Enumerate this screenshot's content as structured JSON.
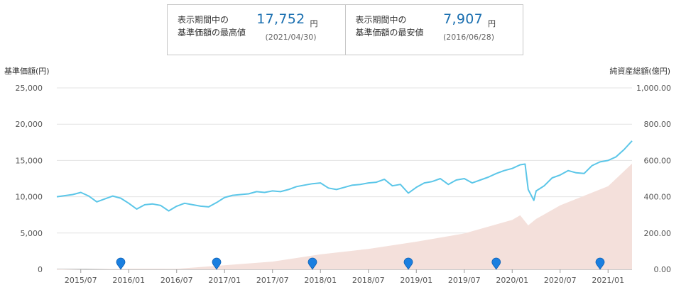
{
  "summary": {
    "high": {
      "label": "表示期間中の\n基準価額の最高値",
      "value": "17,752",
      "unit": "円",
      "date": "(2021/04/30)"
    },
    "low": {
      "label": "表示期間中の\n基準価額の最安値",
      "value": "7,907",
      "unit": "円",
      "date": "(2016/06/28)"
    }
  },
  "chart_data": {
    "type": "line",
    "left_axis_label": "基準価額(円)",
    "right_axis_label": "純資産総額(億円)",
    "y_left": {
      "min": 0,
      "max": 25000,
      "ticks": [
        "0",
        "5,000",
        "10,000",
        "15,000",
        "20,000",
        "25,000"
      ]
    },
    "y_right": {
      "min": 0,
      "max": 1000,
      "ticks": [
        "0.00",
        "200.00",
        "400.00",
        "600.00",
        "800.00",
        "1,000.00"
      ]
    },
    "x_range": [
      "2015-04",
      "2021-04"
    ],
    "x_ticks": [
      "2015/07",
      "2016/01",
      "2016/07",
      "2017/01",
      "2017/07",
      "2018/01",
      "2018/07",
      "2019/01",
      "2019/07",
      "2020/01",
      "2020/07",
      "2021/01"
    ],
    "grid": true,
    "series": [
      {
        "kind": "line",
        "axis": "left",
        "color": "#5bc6e8",
        "points": [
          [
            "2015-04",
            10000
          ],
          [
            "2015-06",
            10300
          ],
          [
            "2015-07",
            10600
          ],
          [
            "2015-08",
            10100
          ],
          [
            "2015-09",
            9300
          ],
          [
            "2015-10",
            9700
          ],
          [
            "2015-11",
            10100
          ],
          [
            "2015-12",
            9800
          ],
          [
            "2016-01",
            9100
          ],
          [
            "2016-02",
            8300
          ],
          [
            "2016-03",
            8900
          ],
          [
            "2016-04",
            9000
          ],
          [
            "2016-05",
            8800
          ],
          [
            "2016-06",
            8050
          ],
          [
            "2016-07",
            8700
          ],
          [
            "2016-08",
            9100
          ],
          [
            "2016-09",
            8900
          ],
          [
            "2016-10",
            8700
          ],
          [
            "2016-11",
            8600
          ],
          [
            "2016-12",
            9200
          ],
          [
            "2017-01",
            9900
          ],
          [
            "2017-02",
            10200
          ],
          [
            "2017-03",
            10300
          ],
          [
            "2017-04",
            10400
          ],
          [
            "2017-05",
            10700
          ],
          [
            "2017-06",
            10600
          ],
          [
            "2017-07",
            10800
          ],
          [
            "2017-08",
            10700
          ],
          [
            "2017-09",
            11000
          ],
          [
            "2017-10",
            11400
          ],
          [
            "2017-11",
            11600
          ],
          [
            "2017-12",
            11800
          ],
          [
            "2018-01",
            11900
          ],
          [
            "2018-02",
            11200
          ],
          [
            "2018-03",
            11000
          ],
          [
            "2018-04",
            11300
          ],
          [
            "2018-05",
            11600
          ],
          [
            "2018-06",
            11700
          ],
          [
            "2018-07",
            11900
          ],
          [
            "2018-08",
            12000
          ],
          [
            "2018-09",
            12400
          ],
          [
            "2018-10",
            11500
          ],
          [
            "2018-11",
            11700
          ],
          [
            "2018-12",
            10500
          ],
          [
            "2019-01",
            11300
          ],
          [
            "2019-02",
            11900
          ],
          [
            "2019-03",
            12100
          ],
          [
            "2019-04",
            12500
          ],
          [
            "2019-05",
            11700
          ],
          [
            "2019-06",
            12300
          ],
          [
            "2019-07",
            12500
          ],
          [
            "2019-08",
            11900
          ],
          [
            "2019-09",
            12300
          ],
          [
            "2019-10",
            12700
          ],
          [
            "2019-11",
            13200
          ],
          [
            "2019-12",
            13600
          ],
          [
            "2020-01",
            13900
          ],
          [
            "2020-02",
            14400
          ],
          [
            "2020-02-20",
            14500
          ],
          [
            "2020-03",
            11000
          ],
          [
            "2020-03-23",
            9500
          ],
          [
            "2020-04",
            10800
          ],
          [
            "2020-05",
            11500
          ],
          [
            "2020-06",
            12600
          ],
          [
            "2020-07",
            13000
          ],
          [
            "2020-08",
            13600
          ],
          [
            "2020-09",
            13300
          ],
          [
            "2020-10",
            13200
          ],
          [
            "2020-11",
            14300
          ],
          [
            "2020-12",
            14800
          ],
          [
            "2021-01",
            15000
          ],
          [
            "2021-02",
            15500
          ],
          [
            "2021-03",
            16500
          ],
          [
            "2021-04",
            17700
          ]
        ]
      },
      {
        "kind": "area",
        "axis": "right",
        "color": "#f4e0db",
        "points": [
          [
            "2015-04",
            0
          ],
          [
            "2016-01",
            1
          ],
          [
            "2016-07",
            5
          ],
          [
            "2017-01",
            20
          ],
          [
            "2017-07",
            45
          ],
          [
            "2018-01",
            80
          ],
          [
            "2018-07",
            115
          ],
          [
            "2019-01",
            150
          ],
          [
            "2019-07",
            200
          ],
          [
            "2020-01",
            270
          ],
          [
            "2020-02",
            300
          ],
          [
            "2020-03",
            240
          ],
          [
            "2020-04",
            280
          ],
          [
            "2020-07",
            350
          ],
          [
            "2021-01",
            460
          ],
          [
            "2021-04",
            580
          ]
        ]
      }
    ],
    "markers": [
      "2015-12",
      "2016-12",
      "2017-12",
      "2018-12",
      "2019-11",
      "2020-12"
    ],
    "marker_color": "#1a7fe0"
  }
}
